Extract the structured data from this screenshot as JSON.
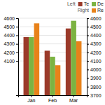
{
  "chart_data": {
    "type": "bar",
    "categories": [
      "Jan",
      "Feb",
      "Mar"
    ],
    "series": [
      {
        "name": "Te",
        "color": "#9B3A2A",
        "values": [
          4380,
          4220,
          4480
        ]
      },
      {
        "name": "De",
        "color": "#7CB342",
        "values": [
          4380,
          4150,
          4570
        ]
      },
      {
        "name": "Re",
        "color": "#E8821A",
        "values": [
          4540,
          4050,
          4330
        ],
        "axis": "y2"
      }
    ],
    "ylim": [
      3700,
      4600
    ],
    "yticks": [
      4100,
      4200,
      4300,
      4400,
      4500,
      4600
    ],
    "y2lim": [
      3700,
      4600
    ],
    "y2ticks": [
      3700,
      3800,
      3900,
      4000,
      4100,
      4200,
      4300,
      4400,
      4500,
      4600
    ],
    "grid": true,
    "legend": "upper right",
    "legend_titles": [
      "Left",
      "Right"
    ]
  }
}
